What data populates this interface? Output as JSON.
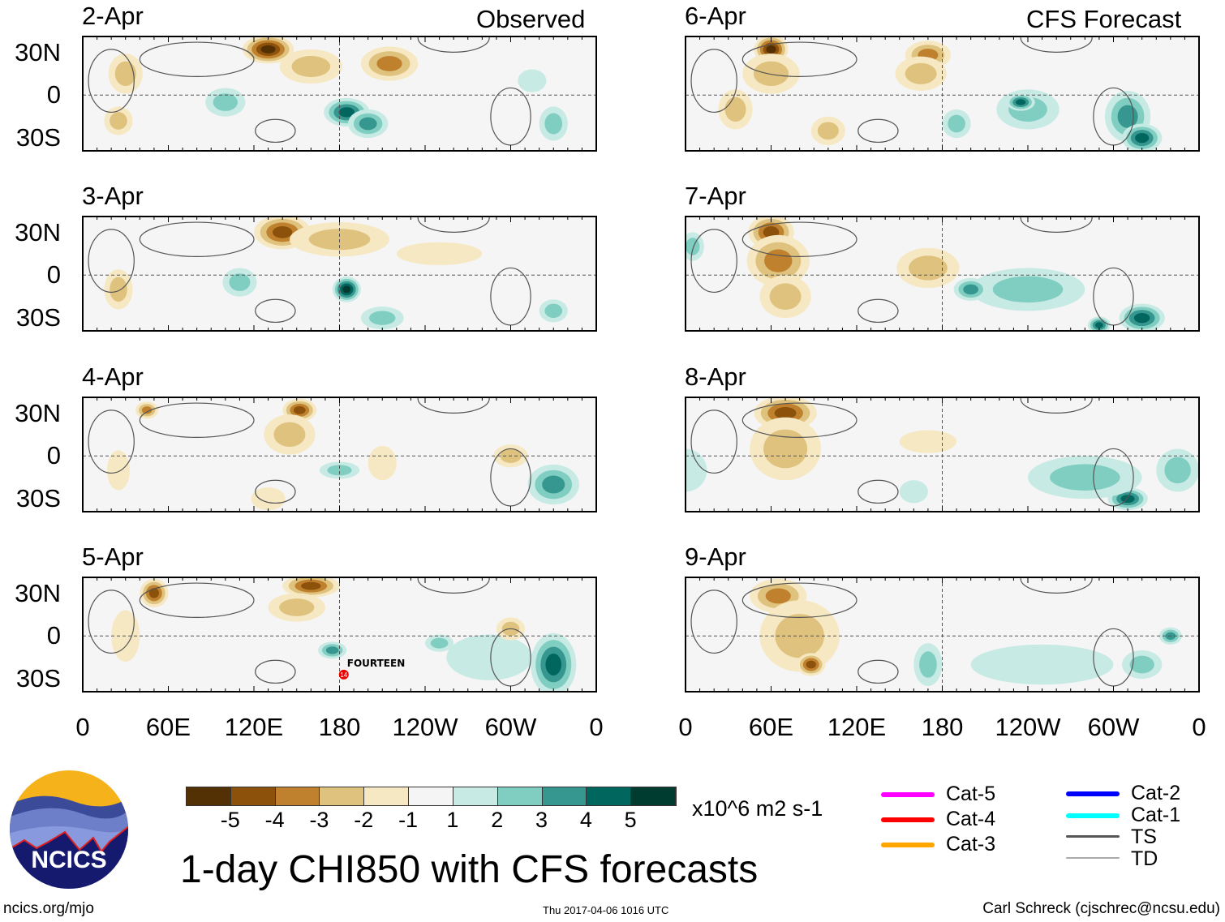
{
  "title": "1-day CHI850 with CFS forecasts",
  "units": "x10^6 m2 s-1",
  "footer": {
    "left": "ncics.org/mjo",
    "center": "Thu 2017-04-06 1016 UTC",
    "right": "Carl Schreck (cjschrec@ncsu.edu)"
  },
  "logo_text": "NCICS",
  "column_labels": {
    "left": "Observed",
    "right": "CFS Forecast"
  },
  "lat_labels": [
    "30N",
    "0",
    "30S"
  ],
  "lon_labels": [
    "0",
    "60E",
    "120E",
    "180",
    "120W",
    "60W",
    "0"
  ],
  "colorbar": {
    "labels": [
      "-5",
      "-4",
      "-3",
      "-2",
      "-1",
      "1",
      "2",
      "3",
      "4",
      "5"
    ],
    "colors": [
      "#543005",
      "#8c510a",
      "#bf812d",
      "#dfc27d",
      "#f6e8c3",
      "#f5f5f5",
      "#c7eae5",
      "#80cdc1",
      "#35978f",
      "#01665e",
      "#003c30"
    ]
  },
  "storm_legend": [
    {
      "label": "Cat-5",
      "color": "#ff00ff"
    },
    {
      "label": "Cat-4",
      "color": "#ff0000"
    },
    {
      "label": "Cat-3",
      "color": "#ffa500"
    },
    {
      "label": "Cat-2",
      "color": "#0000ff"
    },
    {
      "label": "Cat-1",
      "color": "#00ffff"
    },
    {
      "label": "TS",
      "color": "#555555"
    },
    {
      "label": "TD",
      "color": "#aaaaaa"
    }
  ],
  "storm": {
    "name": "FOURTEEN",
    "number": "14",
    "lon": 183,
    "lat": -27,
    "panel": "5-Apr"
  },
  "chart_data": {
    "type": "heatmap",
    "variable": "CHI850 anomaly",
    "lon_range": [
      0,
      360
    ],
    "lat_range": [
      -39,
      41
    ],
    "panels": [
      {
        "date": "2-Apr",
        "source": "Observed",
        "blobs": [
          [
            130,
            32,
            18,
            10,
            -5
          ],
          [
            160,
            20,
            22,
            12,
            -2
          ],
          [
            215,
            22,
            20,
            12,
            -3
          ],
          [
            30,
            15,
            12,
            14,
            -2
          ],
          [
            25,
            -18,
            10,
            10,
            -2
          ],
          [
            185,
            -12,
            16,
            10,
            4
          ],
          [
            200,
            -20,
            14,
            10,
            3
          ],
          [
            100,
            -5,
            14,
            10,
            2
          ],
          [
            330,
            -20,
            10,
            12,
            2
          ],
          [
            315,
            10,
            10,
            8,
            1
          ]
        ]
      },
      {
        "date": "3-Apr",
        "source": "Observed",
        "blobs": [
          [
            140,
            30,
            20,
            12,
            -4
          ],
          [
            180,
            25,
            35,
            12,
            -2
          ],
          [
            250,
            15,
            30,
            8,
            -1
          ],
          [
            25,
            -10,
            10,
            14,
            -2
          ],
          [
            185,
            -10,
            10,
            9,
            5
          ],
          [
            110,
            -5,
            12,
            10,
            2
          ],
          [
            210,
            -30,
            15,
            8,
            2
          ],
          [
            330,
            -25,
            10,
            8,
            2
          ]
        ]
      },
      {
        "date": "4-Apr",
        "source": "Observed",
        "blobs": [
          [
            152,
            32,
            12,
            8,
            -4
          ],
          [
            145,
            15,
            18,
            14,
            -2
          ],
          [
            45,
            32,
            8,
            6,
            -3
          ],
          [
            25,
            -10,
            8,
            14,
            -1
          ],
          [
            180,
            -10,
            14,
            6,
            2
          ],
          [
            330,
            -20,
            18,
            14,
            3
          ],
          [
            300,
            0,
            12,
            8,
            -2
          ],
          [
            210,
            -5,
            10,
            12,
            -1
          ],
          [
            130,
            -30,
            12,
            8,
            -1
          ]
        ]
      },
      {
        "date": "5-Apr",
        "source": "Observed",
        "blobs": [
          [
            50,
            30,
            10,
            10,
            -4
          ],
          [
            160,
            35,
            20,
            8,
            -4
          ],
          [
            150,
            20,
            20,
            10,
            -2
          ],
          [
            30,
            0,
            10,
            18,
            -1
          ],
          [
            330,
            -20,
            16,
            22,
            4
          ],
          [
            175,
            -10,
            10,
            6,
            3
          ],
          [
            250,
            -5,
            10,
            6,
            2
          ],
          [
            285,
            -15,
            30,
            16,
            1
          ],
          [
            300,
            5,
            10,
            8,
            -2
          ]
        ]
      },
      {
        "date": "6-Apr",
        "source": "CFS Forecast",
        "blobs": [
          [
            60,
            32,
            12,
            10,
            -5
          ],
          [
            60,
            15,
            20,
            14,
            -2
          ],
          [
            170,
            28,
            16,
            10,
            -3
          ],
          [
            165,
            15,
            18,
            12,
            -2
          ],
          [
            35,
            -10,
            12,
            14,
            -2
          ],
          [
            100,
            -25,
            12,
            10,
            -2
          ],
          [
            240,
            -10,
            22,
            14,
            2
          ],
          [
            235,
            -5,
            10,
            6,
            4
          ],
          [
            310,
            -15,
            16,
            18,
            3
          ],
          [
            320,
            -30,
            14,
            10,
            4
          ],
          [
            190,
            -20,
            10,
            10,
            2
          ]
        ]
      },
      {
        "date": "7-Apr",
        "source": "CFS Forecast",
        "blobs": [
          [
            60,
            30,
            16,
            12,
            -4
          ],
          [
            65,
            10,
            22,
            18,
            -3
          ],
          [
            70,
            -15,
            18,
            15,
            -2
          ],
          [
            170,
            5,
            22,
            14,
            -2
          ],
          [
            240,
            -10,
            40,
            15,
            2
          ],
          [
            320,
            -30,
            16,
            10,
            4
          ],
          [
            290,
            -35,
            8,
            6,
            4
          ],
          [
            200,
            -10,
            12,
            8,
            3
          ],
          [
            5,
            20,
            8,
            10,
            2
          ]
        ]
      },
      {
        "date": "8-Apr",
        "source": "CFS Forecast",
        "blobs": [
          [
            70,
            30,
            22,
            12,
            -4
          ],
          [
            70,
            5,
            25,
            22,
            -2
          ],
          [
            170,
            10,
            20,
            8,
            -1
          ],
          [
            310,
            -30,
            14,
            8,
            4
          ],
          [
            280,
            -15,
            40,
            15,
            2
          ],
          [
            345,
            -10,
            15,
            15,
            2
          ],
          [
            0,
            -10,
            15,
            15,
            1
          ],
          [
            160,
            -25,
            10,
            8,
            1
          ]
        ]
      },
      {
        "date": "9-Apr",
        "source": "CFS Forecast",
        "blobs": [
          [
            65,
            28,
            20,
            12,
            -3
          ],
          [
            80,
            0,
            28,
            25,
            -2
          ],
          [
            88,
            -20,
            10,
            8,
            -4
          ],
          [
            250,
            -20,
            50,
            14,
            1
          ],
          [
            170,
            -20,
            10,
            15,
            2
          ],
          [
            340,
            0,
            8,
            6,
            3
          ],
          [
            320,
            -20,
            14,
            10,
            2
          ]
        ]
      }
    ]
  }
}
